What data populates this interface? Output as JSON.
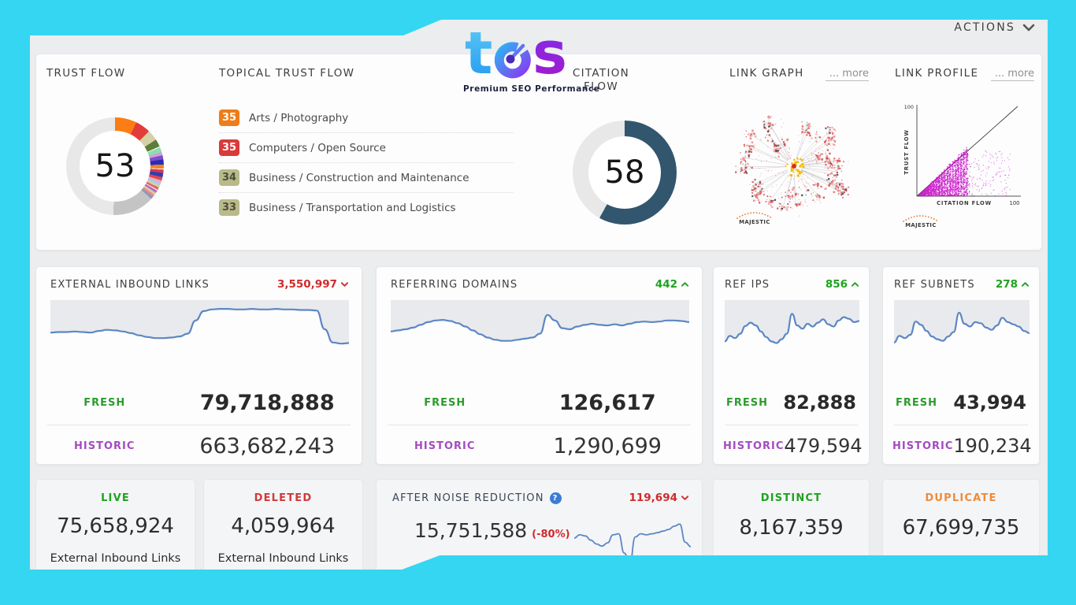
{
  "actions": {
    "label": "ACTIONS"
  },
  "logo": {
    "brand": "tos",
    "brand_t": "t",
    "brand_s": "s",
    "tagline": "Premium SEO Performance"
  },
  "labels": {
    "fresh": "FRESH",
    "historic": "HISTORIC"
  },
  "watermark": {
    "label": "MAJESTIC"
  },
  "flow": {
    "trust": {
      "title": "TRUST FLOW",
      "value": "53"
    },
    "citation": {
      "title": "CITATION FLOW",
      "value": "58"
    }
  },
  "topical": {
    "title": "TOPICAL TRUST FLOW",
    "items": [
      {
        "score": "35",
        "label": "Arts / Photography",
        "color": "#ee7c18",
        "text_color": "#ffffff"
      },
      {
        "score": "35",
        "label": "Computers / Open Source",
        "color": "#d93a3a",
        "text_color": "#ffffff"
      },
      {
        "score": "34",
        "label": "Business / Construction and Maintenance",
        "color": "#b9ba8a",
        "text_color": "#4c4c3a"
      },
      {
        "score": "33",
        "label": "Business / Transportation and Logistics",
        "color": "#b9ba8a",
        "text_color": "#4c4c3a"
      }
    ]
  },
  "link_graph": {
    "title": "LINK GRAPH",
    "more_label": "... more"
  },
  "link_profile": {
    "title": "LINK PROFILE",
    "more_label": "... more",
    "y_max": "100",
    "x_max": "100",
    "ylabel": "TRUST FLOW",
    "xlabel": "CITATION FLOW"
  },
  "link_cards": [
    {
      "title": "EXTERNAL INBOUND LINKS",
      "delta": "3,550,997",
      "trend": "down",
      "fresh": "79,718,888",
      "historic": "663,682,243"
    },
    {
      "title": "REFERRING DOMAINS",
      "delta": "442",
      "trend": "up",
      "fresh": "126,617",
      "historic": "1,290,699"
    },
    {
      "title": "REF IPS",
      "delta": "856",
      "trend": "up",
      "fresh": "82,888",
      "historic": "479,594"
    },
    {
      "title": "REF SUBNETS",
      "delta": "278",
      "trend": "up",
      "fresh": "43,994",
      "historic": "190,234"
    }
  ],
  "summary": {
    "live": {
      "label": "LIVE",
      "value": "75,658,924",
      "caption": "External Inbound Links"
    },
    "deleted": {
      "label": "DELETED",
      "value": "4,059,964",
      "caption": "External Inbound Links"
    },
    "anr": {
      "title": "AFTER NOISE REDUCTION",
      "help_label": "?",
      "value": "15,751,588",
      "note": "(-80%)",
      "delta": "119,694",
      "trend": "down"
    },
    "distinct": {
      "label": "DISTINCT",
      "value": "8,167,359"
    },
    "duplicate": {
      "label": "DUPLICATE",
      "value": "67,699,735"
    }
  },
  "colors": {
    "background": "#35d6f2",
    "accent_red": "#d02a2a",
    "accent_green": "#1ea21e",
    "historic_purple": "#a44bc0",
    "spark_blue": "#5d87c4",
    "citation_donut": "#31566e",
    "duplicate_orange": "#ef8b3a",
    "scatter_magenta": "#c400c4"
  },
  "chart_data": [
    {
      "type": "pie",
      "name": "trust_flow_donut",
      "title": "TRUST FLOW",
      "value": 53,
      "rest_color": "#e8e8e8",
      "segments": [
        {
          "color": "#fb7d14",
          "deg": 26
        },
        {
          "color": "#e23b3b",
          "deg": 18
        },
        {
          "color": "#d5d0a5",
          "deg": 13
        },
        {
          "color": "#5d7d3b",
          "deg": 9
        },
        {
          "color": "#ffffff",
          "deg": 1
        },
        {
          "color": "#8fdcb0",
          "deg": 6
        },
        {
          "color": "#cf9fd8",
          "deg": 4
        },
        {
          "color": "#7a4fc9",
          "deg": 5
        },
        {
          "color": "#2b2bb8",
          "deg": 6
        },
        {
          "color": "#f08224",
          "deg": 5
        },
        {
          "color": "#ffffff",
          "deg": 1
        },
        {
          "color": "#d63a5a",
          "deg": 4
        },
        {
          "color": "#2f3fae",
          "deg": 5
        },
        {
          "color": "#e04848",
          "deg": 4
        },
        {
          "color": "#f0a8c8",
          "deg": 3
        },
        {
          "color": "#a8cce8",
          "deg": 3
        },
        {
          "color": "#d5d0a5",
          "deg": 3
        },
        {
          "color": "#e06666",
          "deg": 3
        },
        {
          "color": "#ffffff",
          "deg": 1
        },
        {
          "color": "#b86ac0",
          "deg": 3
        },
        {
          "color": "#d5d0a5",
          "deg": 3
        },
        {
          "color": "#ee8888",
          "deg": 3
        },
        {
          "color": "#8899bb",
          "deg": 3
        },
        {
          "color": "#c4c4c4",
          "deg": 50
        }
      ]
    },
    {
      "type": "pie",
      "name": "citation_flow_donut",
      "title": "CITATION FLOW",
      "value": 58,
      "rest_color": "#e8e8e8",
      "segments": [
        {
          "color": "#31566e",
          "deg": 209
        }
      ]
    },
    {
      "type": "line",
      "name": "spark_external",
      "title": "EXTERNAL INBOUND LINKS trend",
      "fill_above": true,
      "values": [
        44,
        45,
        45,
        46,
        45,
        44,
        47,
        49,
        48,
        46,
        43,
        39,
        36,
        34,
        34,
        35,
        37,
        42,
        66,
        83,
        86,
        87,
        87,
        86,
        86,
        87,
        86,
        86,
        87,
        86,
        86,
        85,
        85,
        84,
        50,
        26,
        24,
        25
      ]
    },
    {
      "type": "line",
      "name": "spark_referring",
      "title": "REFERRING DOMAINS trend",
      "fill_above": true,
      "values": [
        46,
        48,
        50,
        53,
        58,
        63,
        66,
        67,
        65,
        61,
        55,
        48,
        41,
        35,
        31,
        29,
        29,
        31,
        33,
        35,
        42,
        76,
        66,
        52,
        50,
        55,
        58,
        60,
        58,
        57,
        59,
        57,
        60,
        63,
        64,
        63,
        64,
        66,
        66,
        65,
        63
      ]
    },
    {
      "type": "line",
      "name": "spark_ref_ips",
      "title": "REF IPS trend",
      "fill_above": true,
      "values": [
        28,
        38,
        34,
        42,
        56,
        62,
        57,
        46,
        36,
        28,
        25,
        32,
        42,
        78,
        57,
        51,
        60,
        55,
        62,
        68,
        59,
        55,
        66,
        72,
        69,
        63,
        65
      ]
    },
    {
      "type": "line",
      "name": "spark_ref_subnets",
      "title": "REF SUBNETS trend",
      "fill_above": true,
      "values": [
        26,
        38,
        34,
        40,
        64,
        58,
        47,
        37,
        32,
        29,
        37,
        45,
        80,
        60,
        55,
        63,
        61,
        53,
        49,
        57,
        71,
        63,
        59,
        55,
        47,
        43
      ]
    },
    {
      "type": "line",
      "name": "spark_anr",
      "title": "AFTER NOISE REDUCTION trend",
      "fill_above": false,
      "values": [
        50,
        56,
        54,
        46,
        39,
        35,
        41,
        56,
        58,
        22,
        2,
        52,
        58,
        56,
        58,
        60,
        63,
        66,
        72,
        76,
        42,
        34
      ]
    },
    {
      "type": "scatter",
      "name": "link_profile",
      "title": "LINK PROFILE",
      "xlabel": "CITATION FLOW",
      "ylabel": "TRUST FLOW",
      "xlim": [
        0,
        100
      ],
      "ylim": [
        0,
        100
      ],
      "point_color": "#c400c4",
      "description": "dense magenta backlink cloud below the TF=CF diagonal, citation flow mostly 0-60 with vertical banding and sparse outliers"
    },
    {
      "type": "network",
      "name": "link_graph",
      "title": "LINK GRAPH",
      "center_color": "#f2b800",
      "node_color": "#e06a6a",
      "description": "radial burst link map: yellow core node surrounded by dozens of red link clusters joined by thin gray edges"
    }
  ]
}
